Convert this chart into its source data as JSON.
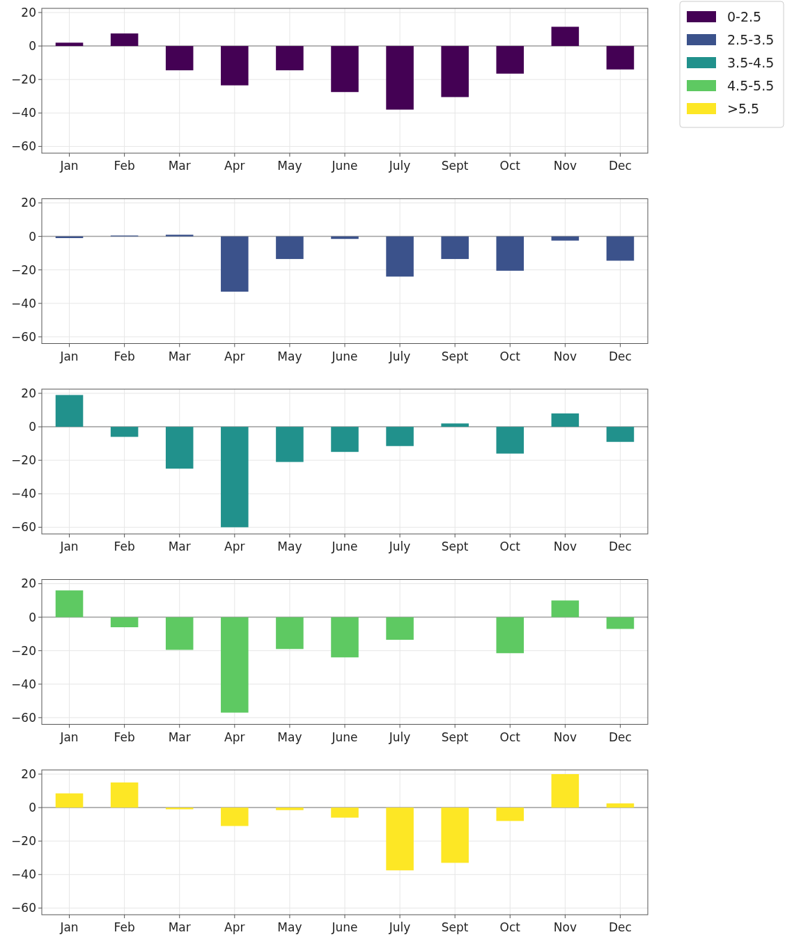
{
  "chart_data": [
    {
      "type": "bar",
      "categories": [
        "Jan",
        "Feb",
        "Mar",
        "Apr",
        "May",
        "June",
        "July",
        "Sept",
        "Oct",
        "Nov",
        "Dec"
      ],
      "series": [
        {
          "name": "0-2.5",
          "color": "#440154",
          "values": [
            2,
            7.5,
            -14.5,
            -23.5,
            -14.5,
            -27.5,
            -38,
            -30.5,
            -16.5,
            11.5,
            -14
          ]
        }
      ],
      "ylim": [
        -64,
        22.5
      ],
      "yticks": [
        {
          "value": -60,
          "label": "−60"
        },
        {
          "value": -40,
          "label": "−40"
        },
        {
          "value": -20,
          "label": "−20"
        },
        {
          "value": 0,
          "label": "0"
        },
        {
          "value": 20,
          "label": "20"
        }
      ],
      "grid": true,
      "legend": "right",
      "ref_lines": [
        {
          "axis": "y",
          "value": 0,
          "color": "#a0a0a0"
        }
      ]
    },
    {
      "type": "bar",
      "categories": [
        "Jan",
        "Feb",
        "Mar",
        "Apr",
        "May",
        "June",
        "July",
        "Sept",
        "Oct",
        "Nov",
        "Dec"
      ],
      "series": [
        {
          "name": "2.5-3.5",
          "color": "#3b528b",
          "values": [
            -1,
            0.5,
            1,
            -33,
            -13.5,
            -1.5,
            -24,
            -13.5,
            -20.5,
            -2.5,
            -14.5
          ]
        }
      ],
      "ylim": [
        -64,
        22.5
      ],
      "yticks": [
        {
          "value": -60,
          "label": "−60"
        },
        {
          "value": -40,
          "label": "−40"
        },
        {
          "value": -20,
          "label": "−20"
        },
        {
          "value": 0,
          "label": "0"
        },
        {
          "value": 20,
          "label": "20"
        }
      ],
      "grid": true,
      "ref_lines": [
        {
          "axis": "y",
          "value": 0,
          "color": "#a0a0a0"
        }
      ]
    },
    {
      "type": "bar",
      "categories": [
        "Jan",
        "Feb",
        "Mar",
        "Apr",
        "May",
        "June",
        "July",
        "Sept",
        "Oct",
        "Nov",
        "Dec"
      ],
      "series": [
        {
          "name": "3.5-4.5",
          "color": "#21918c",
          "values": [
            19,
            -6,
            -25,
            -60,
            -21,
            -15,
            -11.5,
            2,
            -16,
            8,
            -9
          ]
        }
      ],
      "ylim": [
        -64,
        22.5
      ],
      "yticks": [
        {
          "value": -60,
          "label": "−60"
        },
        {
          "value": -40,
          "label": "−40"
        },
        {
          "value": -20,
          "label": "−20"
        },
        {
          "value": 0,
          "label": "0"
        },
        {
          "value": 20,
          "label": "20"
        }
      ],
      "grid": true,
      "ref_lines": [
        {
          "axis": "y",
          "value": 0,
          "color": "#a0a0a0"
        }
      ]
    },
    {
      "type": "bar",
      "categories": [
        "Jan",
        "Feb",
        "Mar",
        "Apr",
        "May",
        "June",
        "July",
        "Sept",
        "Oct",
        "Nov",
        "Dec"
      ],
      "series": [
        {
          "name": "4.5-5.5",
          "color": "#5ec962",
          "values": [
            16,
            -6,
            -19.5,
            -57,
            -19,
            -24,
            -13.5,
            null,
            -21.5,
            10,
            -7
          ]
        }
      ],
      "ylim": [
        -64,
        22.5
      ],
      "yticks": [
        {
          "value": -60,
          "label": "−60"
        },
        {
          "value": -40,
          "label": "−40"
        },
        {
          "value": -20,
          "label": "−20"
        },
        {
          "value": 0,
          "label": "0"
        },
        {
          "value": 20,
          "label": "20"
        }
      ],
      "grid": true,
      "ref_lines": [
        {
          "axis": "y",
          "value": 0,
          "color": "#a0a0a0"
        }
      ]
    },
    {
      "type": "bar",
      "categories": [
        "Jan",
        "Feb",
        "Mar",
        "Apr",
        "May",
        "June",
        "July",
        "Sept",
        "Oct",
        "Nov",
        "Dec"
      ],
      "series": [
        {
          "name": ">5.5",
          "color": "#fde725",
          "values": [
            8.5,
            15,
            -1,
            -11,
            -1.5,
            -6,
            -37.5,
            -33,
            -8,
            20,
            2.5
          ]
        }
      ],
      "ylim": [
        -64,
        22.5
      ],
      "yticks": [
        {
          "value": -60,
          "label": "−60"
        },
        {
          "value": -40,
          "label": "−40"
        },
        {
          "value": -20,
          "label": "−20"
        },
        {
          "value": 0,
          "label": "0"
        },
        {
          "value": 20,
          "label": "20"
        }
      ],
      "grid": true,
      "ref_lines": [
        {
          "axis": "y",
          "value": 0,
          "color": "#a0a0a0"
        }
      ]
    }
  ]
}
